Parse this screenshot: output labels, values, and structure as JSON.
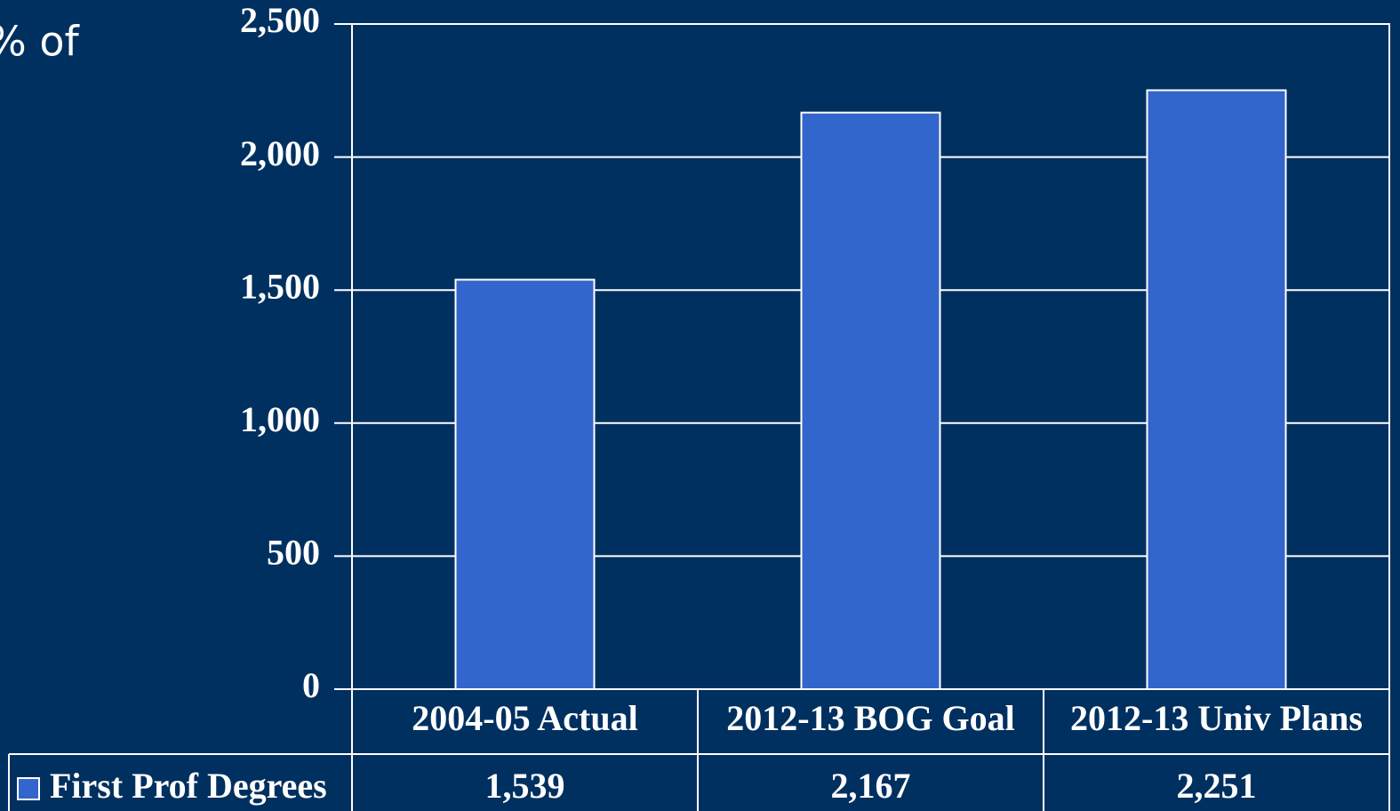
{
  "fragment": "% of",
  "chart_data": {
    "type": "bar",
    "categories": [
      "2004-05 Actual",
      "2012-13 BOG Goal",
      "2012-13 Univ Plans"
    ],
    "series": [
      {
        "name": "First Prof Degrees",
        "color": "#3366cc",
        "values": [
          1539,
          2167,
          2251
        ],
        "value_labels": [
          "1,539",
          "2,167",
          "2,251"
        ]
      }
    ],
    "ylim": [
      0,
      2500
    ],
    "yticks": [
      0,
      500,
      {
        "value": 1000,
        "label": "1,000"
      },
      {
        "value": 1500,
        "label": "1,500"
      },
      {
        "value": 2000,
        "label": "2,000"
      },
      {
        "value": 2500,
        "label": "2,500"
      }
    ],
    "grid": true
  }
}
